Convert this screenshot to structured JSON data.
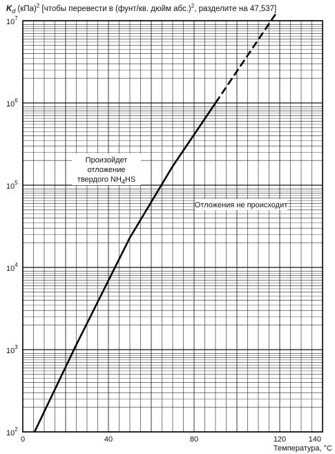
{
  "chart_data": {
    "type": "line",
    "y_axis_title": {
      "symbol": "K",
      "subscript": "d",
      "unit": " (кПа)",
      "unit_exponent": "2",
      "note": " [чтобы перевести в (фунт/кв. дюйм абс.)",
      "note_exponent": "2",
      "note_end": ", разделите на 47,537]"
    },
    "xlabel": "Температура, °C",
    "xlim": [
      0,
      140
    ],
    "ylim": [
      100,
      10000000
    ],
    "yscale": "log",
    "grid": true,
    "x_ticks": [
      {
        "value": 0,
        "label": "0"
      },
      {
        "value": 40,
        "label": "40"
      },
      {
        "value": 80,
        "label": "80"
      },
      {
        "value": 120,
        "label": "120"
      },
      {
        "value": 140,
        "label": "140"
      }
    ],
    "y_ticks": [
      {
        "value": 100,
        "base": "10",
        "exp": "2"
      },
      {
        "value": 1000,
        "base": "10",
        "exp": "3"
      },
      {
        "value": 10000,
        "base": "10",
        "exp": "4"
      },
      {
        "value": 100000,
        "base": "10",
        "exp": "5"
      },
      {
        "value": 1000000,
        "base": "10",
        "exp": "6"
      },
      {
        "value": 10000000,
        "base": "10",
        "exp": "7"
      }
    ],
    "series": [
      {
        "style": "solid",
        "points": [
          [
            5.5,
            100
          ],
          [
            25,
            1150
          ],
          [
            50,
            23000
          ],
          [
            70,
            170000
          ],
          [
            90,
            1000000
          ]
        ]
      },
      {
        "style": "dashed",
        "points": [
          [
            90,
            1000000
          ],
          [
            118,
            12000000
          ]
        ]
      }
    ],
    "annotations": {
      "region_deposit": {
        "line1": "Произойдет",
        "line2": "отложение",
        "line3_prefix": "твердого NH",
        "line3_sub": "4",
        "line3_suffix": "HS"
      },
      "region_no_deposit": "Отложения не происходит"
    }
  }
}
